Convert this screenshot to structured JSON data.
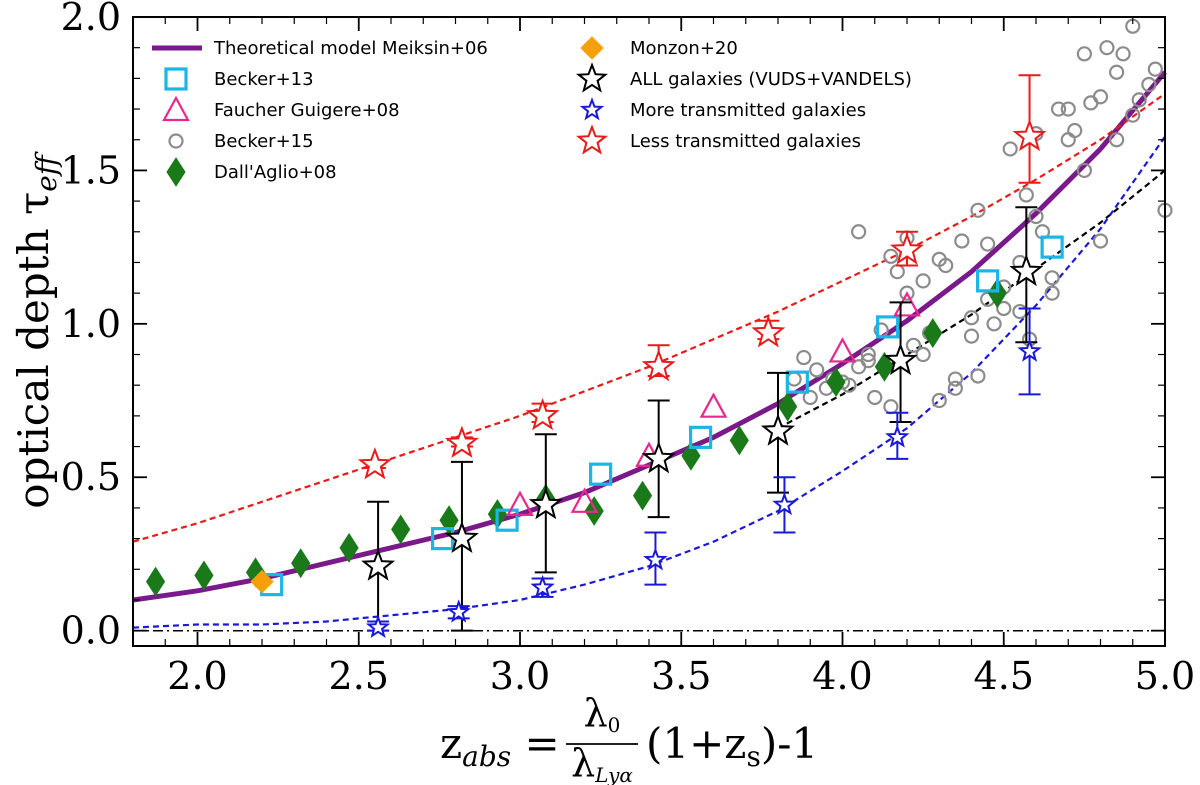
{
  "chart_data": {
    "type": "scatter",
    "xlabel": {
      "main": "z",
      "sub": "abs",
      "eq": " = ",
      "frac_num": "λ",
      "frac_num_sub": "0",
      "frac_den": "λ",
      "frac_den_sub": "Lyα",
      "tail": "(1+z",
      "tail_sub": "s",
      "tail_end": ")-1"
    },
    "ylabel": {
      "main": "optical depth τ",
      "sub": "eff"
    },
    "xlim": [
      1.8,
      5.0
    ],
    "ylim": [
      -0.05,
      2.0
    ],
    "xticks": [
      2.0,
      2.5,
      3.0,
      3.5,
      4.0,
      4.5,
      5.0
    ],
    "xtick_labels": [
      "2.0",
      "2.5",
      "3.0",
      "3.5",
      "4.0",
      "4.5",
      "5.0"
    ],
    "yticks": [
      0.0,
      0.5,
      1.0,
      1.5,
      2.0
    ],
    "ytick_labels": [
      "0.0",
      "0.5",
      "1.0",
      "1.5",
      "2.0"
    ],
    "colors": {
      "model": "#7a1a8a",
      "becker13": "#1ab6e8",
      "faucher": "#e8288c",
      "becker15": "#8c8c8c",
      "dallaglio": "#1a7a1a",
      "monzon": "#f5a00a",
      "all": "#000000",
      "more": "#1a1ad6",
      "less": "#e81a1a"
    },
    "legend": [
      {
        "key": "model",
        "label": "Theoretical model Meiksin+06"
      },
      {
        "key": "becker13",
        "label": "Becker+13"
      },
      {
        "key": "faucher",
        "label": "Faucher Guigere+08"
      },
      {
        "key": "becker15",
        "label": "Becker+15"
      },
      {
        "key": "dallaglio",
        "label": "Dall'Aglio+08"
      },
      {
        "key": "monzon",
        "label": "Monzon+20"
      },
      {
        "key": "all",
        "label": "ALL galaxies (VUDS+VANDELS)"
      },
      {
        "key": "more",
        "label": "More transmitted galaxies"
      },
      {
        "key": "less",
        "label": "Less transmitted galaxies"
      }
    ],
    "series": [
      {
        "name": "Becker+13",
        "key": "becker13",
        "marker": "square",
        "x": [
          2.23,
          2.76,
          2.96,
          3.25,
          3.56,
          3.86,
          4.14,
          4.45,
          4.65
        ],
        "y": [
          0.15,
          0.3,
          0.36,
          0.51,
          0.63,
          0.81,
          0.99,
          1.14,
          1.25
        ]
      },
      {
        "name": "Faucher Guigere+08",
        "key": "faucher",
        "marker": "triangle",
        "x": [
          3.0,
          3.2,
          3.4,
          3.6,
          4.0,
          4.2
        ],
        "y": [
          0.41,
          0.42,
          0.57,
          0.73,
          0.91,
          1.06
        ]
      },
      {
        "name": "Becker+15",
        "key": "becker15",
        "marker": "circle",
        "x": [
          3.85,
          3.88,
          3.9,
          3.95,
          3.97,
          4.0,
          4.02,
          4.05,
          4.08,
          4.1,
          4.12,
          4.15,
          4.17,
          4.2,
          4.22,
          4.25,
          4.27,
          4.3,
          4.32,
          4.35,
          4.37,
          4.4,
          4.42,
          4.45,
          4.47,
          4.5,
          4.52,
          4.55,
          4.57,
          4.6,
          4.62,
          4.65,
          4.67,
          4.7,
          4.72,
          4.75,
          4.77,
          4.8,
          4.82,
          4.85,
          4.87,
          4.9,
          4.92,
          4.95,
          4.97,
          5.0,
          4.05,
          4.15,
          4.3,
          4.45,
          4.6,
          4.75,
          4.9,
          4.2,
          4.4,
          4.55,
          4.7,
          4.85,
          4.35,
          4.5,
          4.65,
          4.8,
          3.92,
          4.08,
          4.25,
          4.42,
          4.58
        ],
        "y": [
          0.82,
          0.89,
          0.76,
          0.79,
          0.82,
          0.81,
          0.8,
          0.86,
          0.9,
          0.76,
          0.98,
          0.73,
          1.17,
          1.1,
          0.93,
          1.14,
          0.97,
          0.75,
          1.19,
          0.79,
          1.27,
          1.02,
          1.37,
          1.08,
          1.0,
          1.12,
          1.57,
          1.2,
          1.42,
          1.62,
          1.3,
          1.15,
          1.7,
          1.7,
          1.63,
          1.5,
          1.72,
          1.74,
          1.9,
          1.82,
          1.88,
          1.68,
          1.73,
          1.78,
          1.83,
          1.37,
          1.3,
          1.22,
          1.21,
          1.26,
          1.35,
          1.88,
          1.97,
          1.28,
          0.96,
          1.04,
          1.6,
          1.6,
          0.82,
          1.05,
          1.1,
          1.27,
          0.85,
          0.88,
          0.9,
          0.83,
          0.95
        ]
      },
      {
        "name": "Dall'Aglio+08",
        "key": "dallaglio",
        "marker": "thin_diamond",
        "x": [
          1.87,
          2.02,
          2.18,
          2.32,
          2.47,
          2.63,
          2.78,
          2.93,
          3.08,
          3.23,
          3.38,
          3.53,
          3.68,
          3.83,
          3.98,
          4.13,
          4.28,
          4.48
        ],
        "y": [
          0.16,
          0.18,
          0.19,
          0.22,
          0.27,
          0.33,
          0.36,
          0.38,
          0.43,
          0.39,
          0.44,
          0.57,
          0.62,
          0.73,
          0.81,
          0.86,
          0.97,
          1.1
        ]
      },
      {
        "name": "Monzon+20",
        "key": "monzon",
        "marker": "diamond",
        "x": [
          2.2
        ],
        "y": [
          0.16
        ]
      }
    ],
    "errorbar_series": [
      {
        "name": "ALL galaxies (VUDS+VANDELS)",
        "key": "all",
        "fill": "#ffffff",
        "size": 30,
        "x": [
          2.56,
          2.82,
          3.08,
          3.43,
          3.8,
          4.18,
          4.57
        ],
        "y": [
          0.21,
          0.3,
          0.41,
          0.56,
          0.65,
          0.88,
          1.17
        ],
        "lo": [
          0.0,
          0.0,
          0.19,
          0.37,
          0.45,
          0.68,
          0.94
        ],
        "hi": [
          0.42,
          0.55,
          0.64,
          0.75,
          0.84,
          1.07,
          1.38
        ]
      },
      {
        "name": "More transmitted galaxies",
        "key": "more",
        "fill": "#ffffff",
        "size": 20,
        "x": [
          2.56,
          2.81,
          3.07,
          3.42,
          3.82,
          4.17,
          4.58
        ],
        "y": [
          0.01,
          0.06,
          0.14,
          0.23,
          0.41,
          0.63,
          0.91
        ],
        "lo": [
          0.0,
          0.04,
          0.11,
          0.15,
          0.32,
          0.56,
          0.77
        ],
        "hi": [
          0.03,
          0.08,
          0.17,
          0.32,
          0.5,
          0.71,
          1.05
        ]
      },
      {
        "name": "Less transmitted galaxies",
        "key": "less",
        "fill": "#ffffff",
        "size": 30,
        "x": [
          2.55,
          2.82,
          3.07,
          3.43,
          3.77,
          4.2,
          4.58
        ],
        "y": [
          0.54,
          0.61,
          0.7,
          0.86,
          0.97,
          1.24,
          1.61
        ],
        "lo": [
          0.53,
          0.6,
          0.68,
          0.83,
          0.95,
          1.19,
          1.46
        ],
        "hi": [
          0.55,
          0.63,
          0.74,
          0.93,
          1.01,
          1.3,
          1.81
        ]
      }
    ],
    "fit_lines": [
      {
        "name": "model curve",
        "key": "model",
        "style": "solid",
        "width": 5,
        "x": [
          1.8,
          2.0,
          2.2,
          2.4,
          2.6,
          2.8,
          3.0,
          3.2,
          3.4,
          3.6,
          3.8,
          4.0,
          4.2,
          4.4,
          4.6,
          4.8,
          5.0
        ],
        "y": [
          0.1,
          0.13,
          0.17,
          0.22,
          0.27,
          0.32,
          0.38,
          0.45,
          0.54,
          0.63,
          0.74,
          0.87,
          1.01,
          1.17,
          1.36,
          1.57,
          1.82
        ]
      },
      {
        "name": "less fit",
        "key": "less",
        "style": "dashed",
        "width": 2.2,
        "x": [
          1.8,
          2.0,
          2.2,
          2.4,
          2.6,
          2.8,
          3.0,
          3.2,
          3.4,
          3.6,
          3.8,
          4.0,
          4.2,
          4.4,
          4.6,
          4.8,
          5.0
        ],
        "y": [
          0.29,
          0.35,
          0.42,
          0.49,
          0.56,
          0.63,
          0.7,
          0.78,
          0.86,
          0.95,
          1.04,
          1.14,
          1.24,
          1.35,
          1.47,
          1.6,
          1.75
        ]
      },
      {
        "name": "all fit",
        "key": "all",
        "style": "dashed",
        "width": 2.2,
        "x": [
          3.8,
          4.0,
          4.2,
          4.4,
          4.6,
          4.8,
          5.0
        ],
        "y": [
          0.66,
          0.77,
          0.9,
          1.03,
          1.18,
          1.33,
          1.5
        ]
      },
      {
        "name": "more fit",
        "key": "more",
        "style": "dashed",
        "width": 2.2,
        "x": [
          1.8,
          2.0,
          2.2,
          2.4,
          2.6,
          2.8,
          3.0,
          3.2,
          3.4,
          3.6,
          3.8,
          4.0,
          4.2,
          4.4,
          4.6,
          4.8,
          5.0
        ],
        "y": [
          0.01,
          0.02,
          0.02,
          0.03,
          0.05,
          0.07,
          0.1,
          0.15,
          0.21,
          0.29,
          0.39,
          0.52,
          0.66,
          0.84,
          1.06,
          1.31,
          1.61
        ]
      },
      {
        "name": "zero line",
        "key": "all",
        "style": "dashdot",
        "width": 1.5,
        "x": [
          1.8,
          5.0
        ],
        "y": [
          0.0,
          0.0
        ]
      }
    ]
  }
}
